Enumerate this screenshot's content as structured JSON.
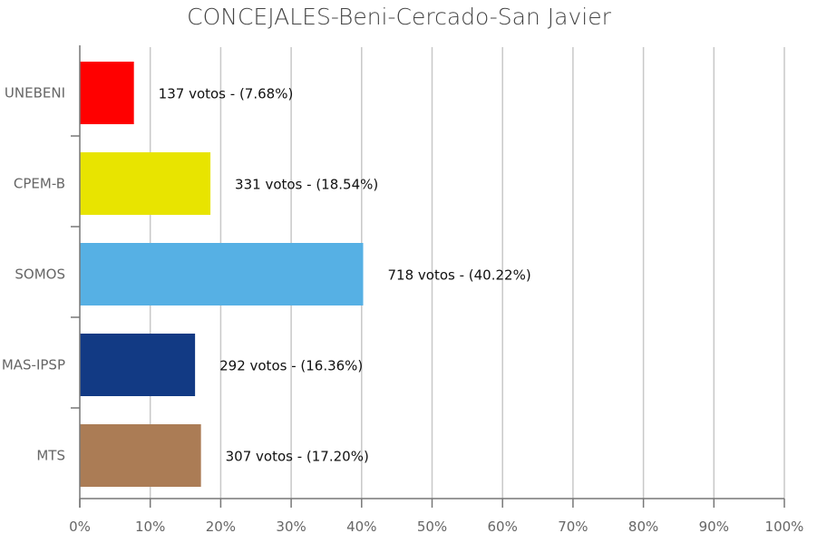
{
  "chart_data": {
    "type": "bar",
    "orientation": "horizontal",
    "title": "CONCEJALES-Beni-Cercado-San Javier",
    "categories": [
      "UNEBENI",
      "CPEM-B",
      "SOMOS",
      "MAS-IPSP",
      "MTS"
    ],
    "values": [
      7.68,
      18.54,
      40.22,
      16.36,
      17.2
    ],
    "votes": [
      137,
      331,
      718,
      292,
      307
    ],
    "data_labels": [
      "137 votos - (7.68%)",
      "331 votos - (18.54%)",
      "718 votos - (40.22%)",
      "292 votos - (16.36%)",
      "307 votos - (17.20%)"
    ],
    "colors": [
      "#ff0000",
      "#e8e400",
      "#56b0e4",
      "#123a84",
      "#ab7c55"
    ],
    "xlim": [
      0,
      100
    ],
    "xticks": [
      "0%",
      "10%",
      "20%",
      "30%",
      "40%",
      "50%",
      "60%",
      "70%",
      "80%",
      "90%",
      "100%"
    ],
    "grid": "vertical",
    "legend": "none"
  }
}
